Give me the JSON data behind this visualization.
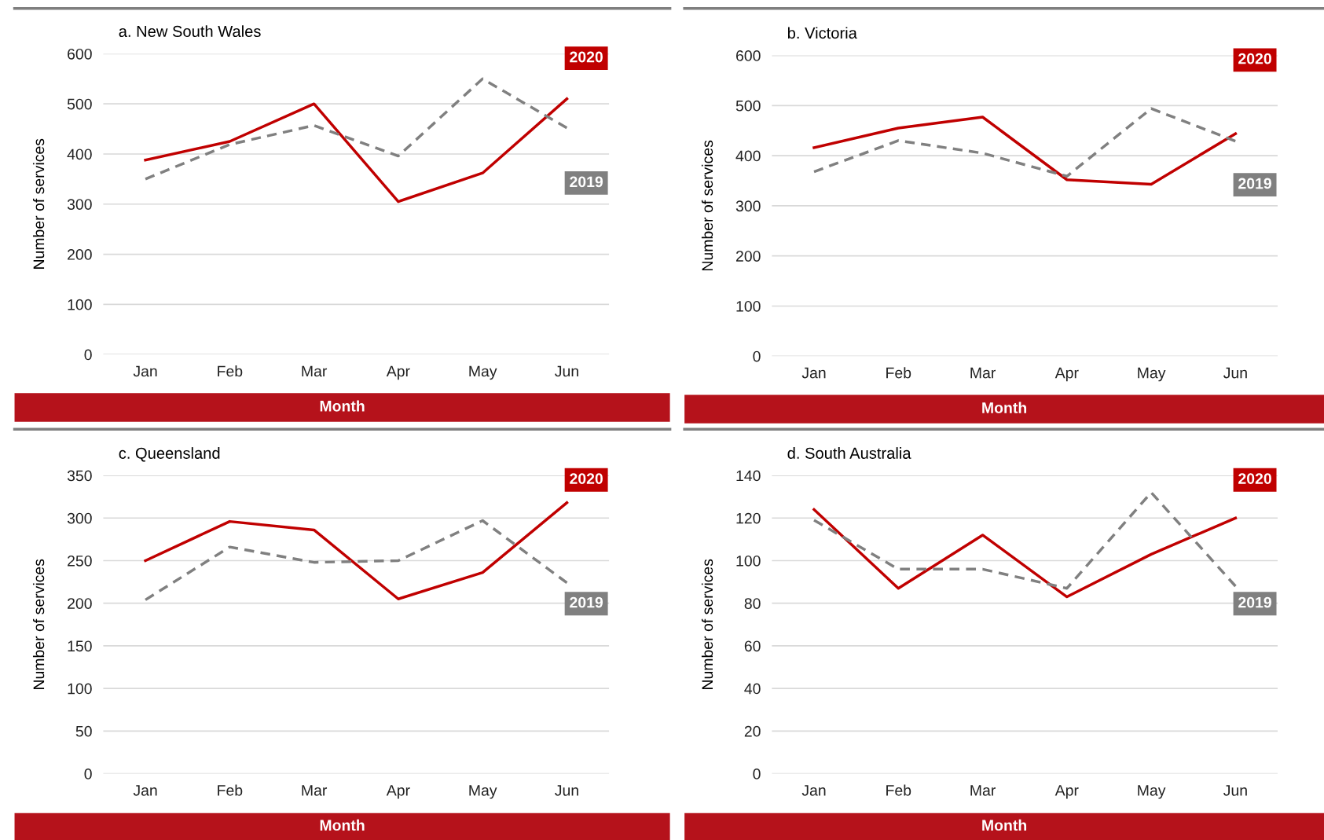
{
  "chart_data": [
    {
      "type": "line",
      "title": "a. New South Wales",
      "xlabel": "Month",
      "ylabel": "Number of services",
      "categories": [
        "Jan",
        "Feb",
        "Mar",
        "Apr",
        "May",
        "Jun"
      ],
      "ylim": [
        0,
        600
      ],
      "yticks": [
        0,
        100,
        200,
        300,
        400,
        500,
        600
      ],
      "grid": "y",
      "series": [
        {
          "name": "2020",
          "color": "#c00000",
          "line_style": "solid",
          "values": [
            388,
            425,
            500,
            305,
            362,
            510
          ]
        },
        {
          "name": "2019",
          "color": "#808080",
          "line_style": "dashed",
          "values": [
            350,
            419,
            457,
            396,
            550,
            452
          ]
        }
      ]
    },
    {
      "type": "line",
      "title": "b. Victoria",
      "xlabel": "Month",
      "ylabel": "Number of services",
      "categories": [
        "Jan",
        "Feb",
        "Mar",
        "Apr",
        "May",
        "Jun"
      ],
      "ylim": [
        0,
        600
      ],
      "yticks": [
        0,
        100,
        200,
        300,
        400,
        500,
        600
      ],
      "grid": "y",
      "series": [
        {
          "name": "2020",
          "color": "#c00000",
          "line_style": "solid",
          "values": [
            416,
            455,
            477,
            352,
            343,
            444
          ]
        },
        {
          "name": "2019",
          "color": "#808080",
          "line_style": "dashed",
          "values": [
            368,
            430,
            405,
            359,
            494,
            429
          ]
        }
      ]
    },
    {
      "type": "line",
      "title": "c. Queensland",
      "xlabel": "Month",
      "ylabel": "Number of services",
      "categories": [
        "Jan",
        "Feb",
        "Mar",
        "Apr",
        "May",
        "Jun"
      ],
      "ylim": [
        0,
        350
      ],
      "yticks": [
        0,
        50,
        100,
        150,
        200,
        250,
        300,
        350
      ],
      "grid": "y",
      "series": [
        {
          "name": "2020",
          "color": "#c00000",
          "line_style": "solid",
          "values": [
            250,
            296,
            286,
            205,
            236,
            318
          ]
        },
        {
          "name": "2019",
          "color": "#808080",
          "line_style": "dashed",
          "values": [
            204,
            266,
            248,
            250,
            297,
            224
          ]
        }
      ]
    },
    {
      "type": "line",
      "title": "d. South Australia",
      "xlabel": "Month",
      "ylabel": "Number of services",
      "categories": [
        "Jan",
        "Feb",
        "Mar",
        "Apr",
        "May",
        "Jun"
      ],
      "ylim": [
        0,
        140
      ],
      "yticks": [
        0,
        20,
        40,
        60,
        80,
        100,
        120,
        140
      ],
      "grid": "y",
      "series": [
        {
          "name": "2020",
          "color": "#c00000",
          "line_style": "solid",
          "values": [
            124,
            87,
            112,
            83,
            103,
            120
          ]
        },
        {
          "name": "2019",
          "color": "#808080",
          "line_style": "dashed",
          "values": [
            119,
            96,
            96,
            87,
            132,
            88
          ]
        }
      ]
    }
  ]
}
